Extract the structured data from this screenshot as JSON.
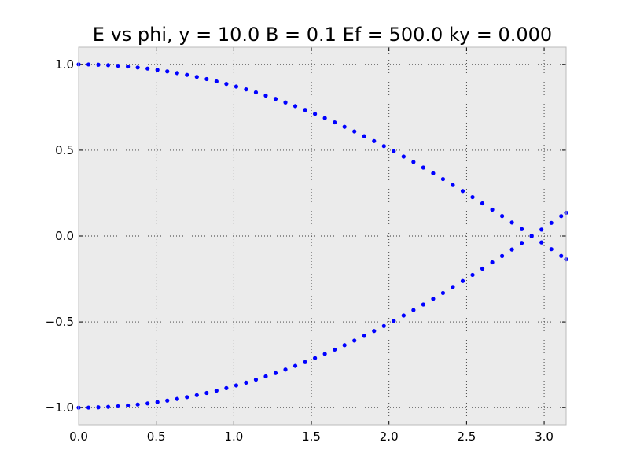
{
  "chart_data": {
    "type": "scatter",
    "title": "E vs phi, y = 10.0 B = 0.1 Ef = 500.0 ky = 0.000",
    "xlabel": "",
    "ylabel": "",
    "xlim": [
      0,
      3.1416
    ],
    "ylim": [
      -1.1,
      1.1
    ],
    "grid": true,
    "x_ticks": [
      {
        "value": 0.0,
        "label": "0.0"
      },
      {
        "value": 0.5,
        "label": "0.5"
      },
      {
        "value": 1.0,
        "label": "1.0"
      },
      {
        "value": 1.5,
        "label": "1.5"
      },
      {
        "value": 2.0,
        "label": "2.0"
      },
      {
        "value": 2.5,
        "label": "2.5"
      },
      {
        "value": 3.0,
        "label": "3.0"
      }
    ],
    "y_ticks": [
      {
        "value": -1.0,
        "label": "−1.0"
      },
      {
        "value": -0.5,
        "label": "−0.5"
      },
      {
        "value": 0.0,
        "label": "0.0"
      },
      {
        "value": 0.5,
        "label": "0.5"
      },
      {
        "value": 1.0,
        "label": "1.0"
      }
    ],
    "x": [
      0.0,
      0.0635,
      0.1269,
      0.1904,
      0.2539,
      0.3173,
      0.3808,
      0.4443,
      0.5077,
      0.5712,
      0.6347,
      0.6981,
      0.7616,
      0.8251,
      0.8885,
      0.952,
      1.0155,
      1.0789,
      1.1424,
      1.2059,
      1.2693,
      1.3328,
      1.3963,
      1.4597,
      1.5232,
      1.5867,
      1.6501,
      1.7136,
      1.7771,
      1.8405,
      1.904,
      1.9675,
      2.0309,
      2.0944,
      2.1579,
      2.2213,
      2.2848,
      2.3483,
      2.4117,
      2.4752,
      2.5387,
      2.6021,
      2.6656,
      2.7291,
      2.7925,
      2.856,
      2.9195,
      2.9829,
      3.0464,
      3.1099,
      3.1416
    ],
    "series": [
      {
        "color": "#0000ff",
        "values": [
          1.0,
          0.9995,
          0.998,
          0.9955,
          0.9919,
          0.9874,
          0.9818,
          0.9753,
          0.9677,
          0.9591,
          0.9494,
          0.9388,
          0.9272,
          0.9145,
          0.9009,
          0.8863,
          0.8707,
          0.8541,
          0.8365,
          0.818,
          0.7985,
          0.7781,
          0.7567,
          0.7344,
          0.7112,
          0.6871,
          0.662,
          0.6361,
          0.6093,
          0.5817,
          0.5532,
          0.5239,
          0.4938,
          0.4629,
          0.4312,
          0.3988,
          0.3657,
          0.3319,
          0.2974,
          0.2623,
          0.2266,
          0.1903,
          0.1535,
          0.1162,
          0.0784,
          0.0402,
          0.0016,
          -0.0373,
          -0.0765,
          -0.1159,
          -0.1357
        ]
      },
      {
        "color": "#0000ff",
        "values": [
          -1.0,
          -0.9995,
          -0.998,
          -0.9955,
          -0.9919,
          -0.9874,
          -0.9818,
          -0.9753,
          -0.9677,
          -0.9591,
          -0.9494,
          -0.9388,
          -0.9272,
          -0.9145,
          -0.9009,
          -0.8863,
          -0.8707,
          -0.8541,
          -0.8365,
          -0.818,
          -0.7985,
          -0.7781,
          -0.7567,
          -0.7344,
          -0.7112,
          -0.6871,
          -0.662,
          -0.6361,
          -0.6093,
          -0.5817,
          -0.5532,
          -0.5239,
          -0.4938,
          -0.4629,
          -0.4312,
          -0.3988,
          -0.3657,
          -0.3319,
          -0.2974,
          -0.2623,
          -0.2266,
          -0.1903,
          -0.1535,
          -0.1162,
          -0.0784,
          -0.0402,
          -0.0016,
          0.0373,
          0.0765,
          0.1159,
          0.1357
        ]
      }
    ],
    "colors": {
      "background": "#ebebeb",
      "marker": "#0000ff"
    }
  }
}
